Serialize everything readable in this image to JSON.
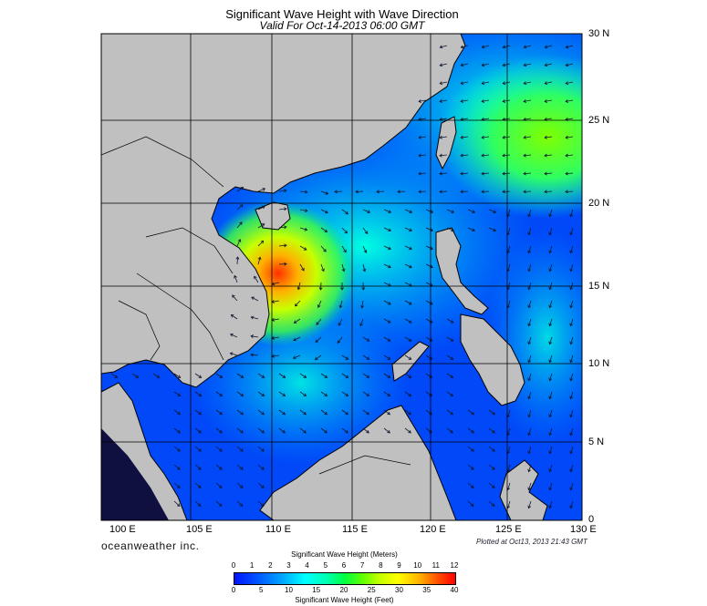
{
  "title": "Significant Wave Height with Wave Direction",
  "subtitle": "Valid For Oct-14-2013 06:00 GMT",
  "lat_labels": [
    "30 N",
    "25 N",
    "20 N",
    "15 N",
    "10 N",
    "5 N",
    "0"
  ],
  "lon_labels": [
    "100 E",
    "105 E",
    "110 E",
    "115 E",
    "120 E",
    "125 E",
    "130 E"
  ],
  "brand": "oceanweather inc.",
  "plotted": "Plotted at Oct13, 2013 21:43 GMT",
  "colorbar": {
    "meters_title": "Significant Wave Height (Meters)",
    "feet_title": "Significant Wave Height (Feet)",
    "meters_ticks": [
      "0",
      "1",
      "2",
      "3",
      "4",
      "5",
      "6",
      "7",
      "8",
      "9",
      "10",
      "11",
      "12"
    ],
    "feet_ticks": [
      "0",
      "5",
      "10",
      "15",
      "20",
      "25",
      "30",
      "35",
      "40"
    ]
  },
  "colors": {
    "land": "#c0c0c0",
    "ocean_low": "#0050ff",
    "ocean_mid": "#00e0ff",
    "ocean_high": "#40ff40",
    "storm": "#ff4000"
  }
}
